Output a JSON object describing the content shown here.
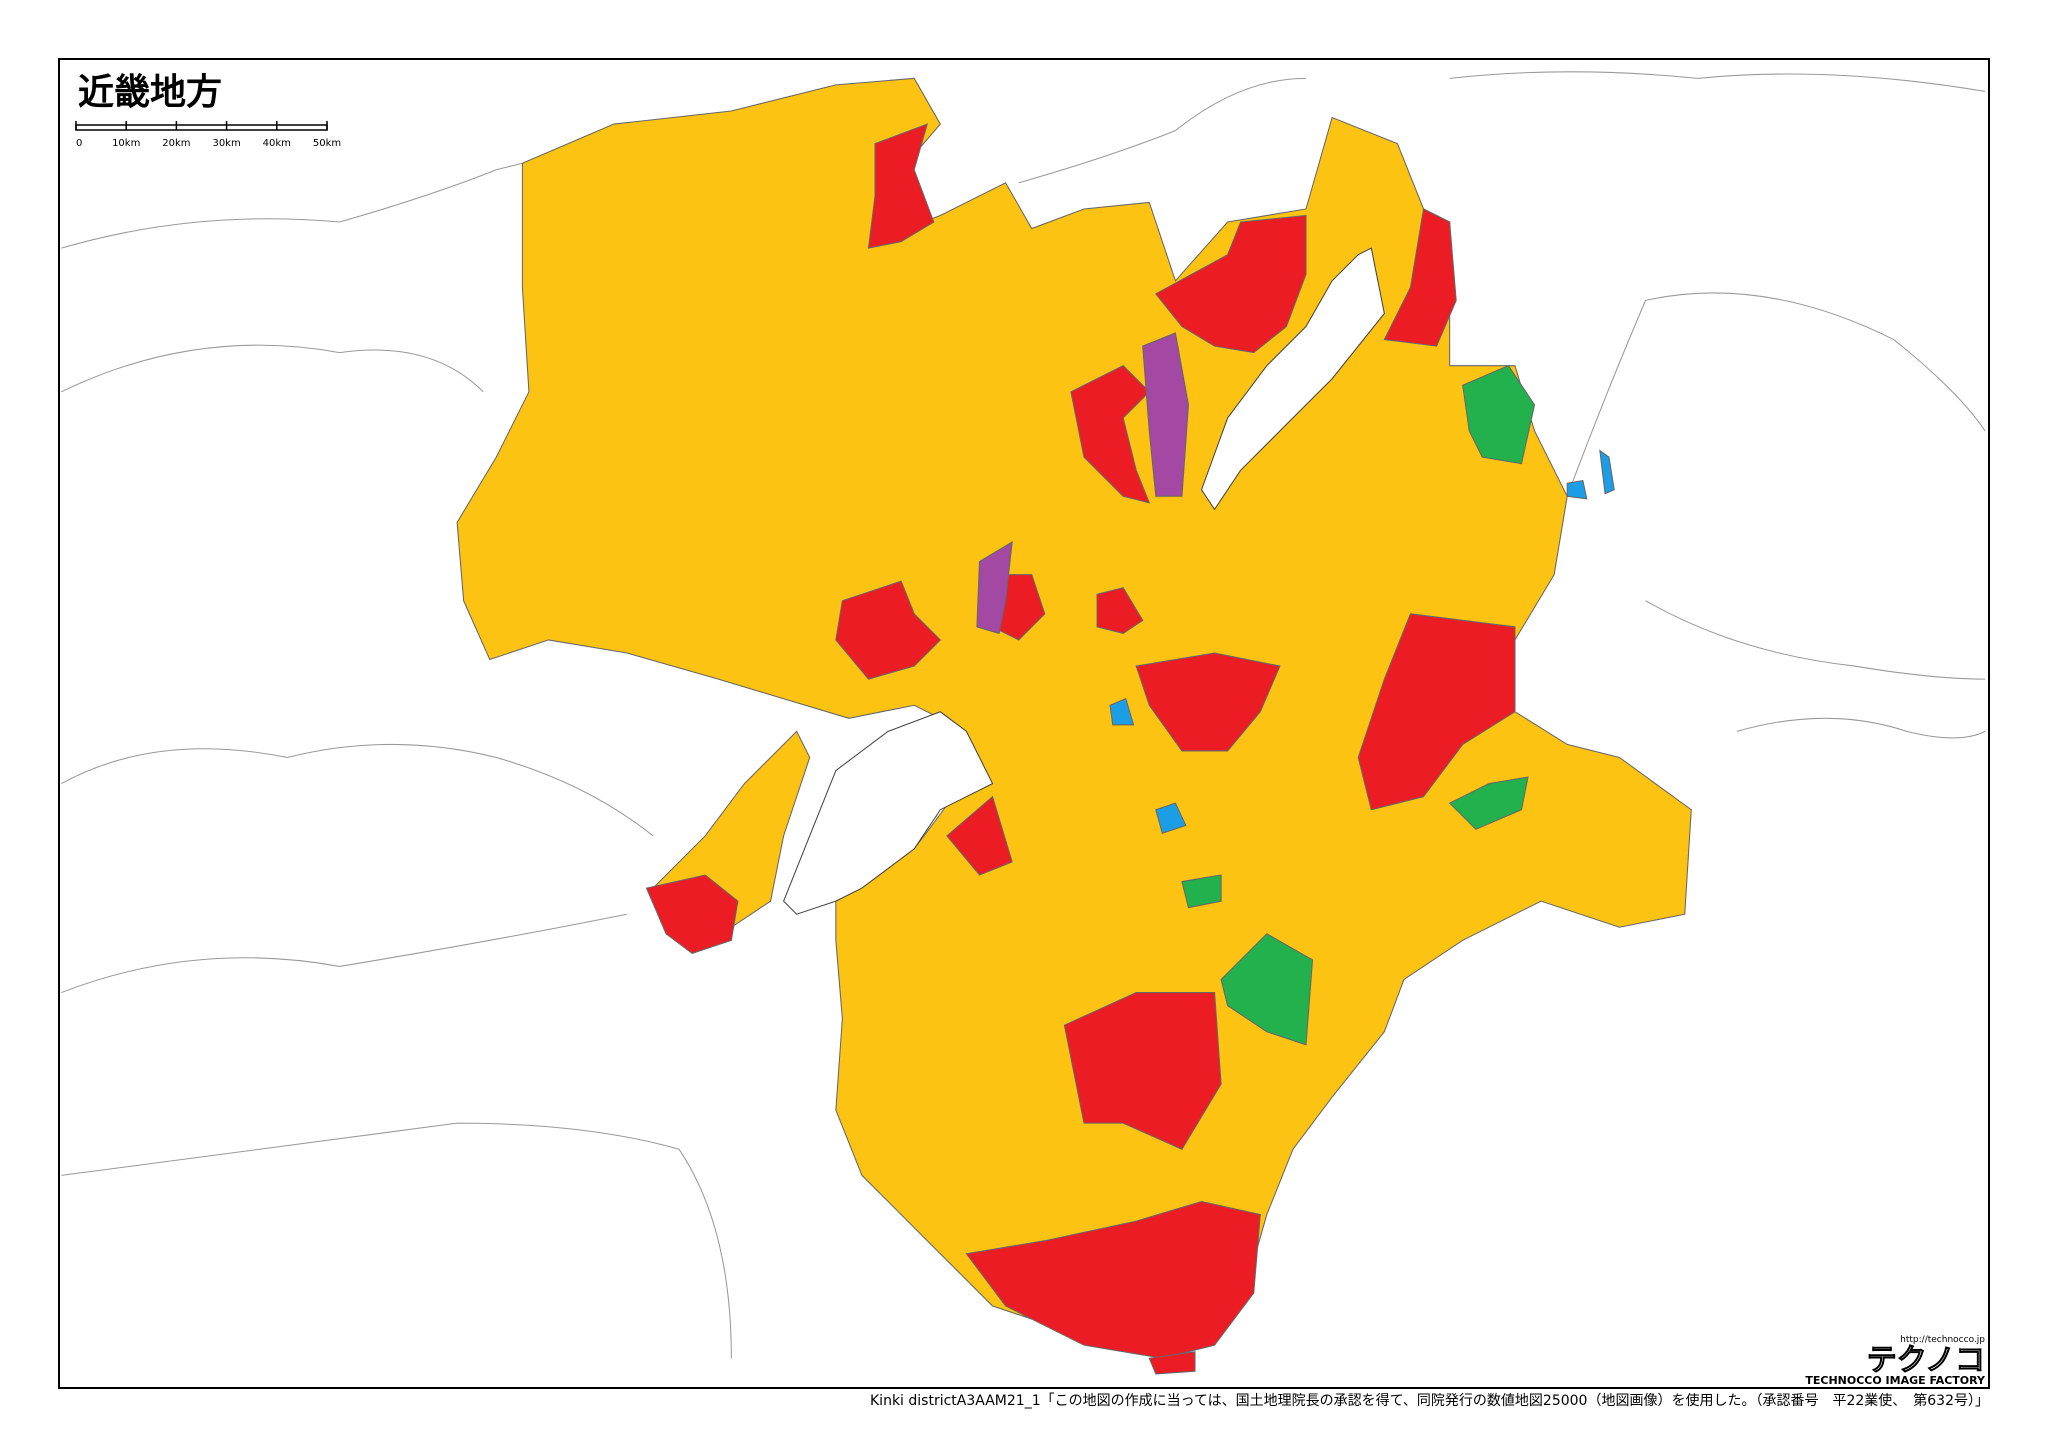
{
  "title": "近畿地方",
  "scale_bar": {
    "labels": [
      "0",
      "10km",
      "20km",
      "30km",
      "40km",
      "50km"
    ]
  },
  "logo": {
    "url": "http://technocco.jp",
    "name": "テクノコ",
    "tagline": "TECHNOCCO IMAGE FACTORY"
  },
  "footer": "Kinki districtA3AAM21_1「この地図の作成に当っては、国土地理院長の承認を得て、同院発行の数値地図25000（地図画像）を使用した。（承認番号　平22業使、　第632号）」"
}
